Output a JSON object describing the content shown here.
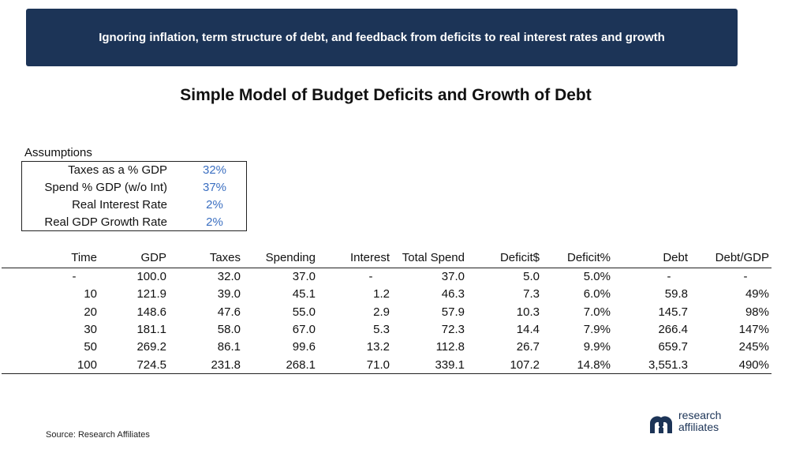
{
  "banner": "Ignoring inflation, term structure of debt, and feedback from deficits to real interest rates and growth",
  "title": "Simple Model of Budget Deficits and Growth of Debt",
  "assumptions": {
    "label": "Assumptions",
    "rows": [
      {
        "k": "Taxes as a % GDP",
        "v": "32%"
      },
      {
        "k": "Spend % GDP (w/o Int)",
        "v": "37%"
      },
      {
        "k": "Real Interest Rate",
        "v": "2%"
      },
      {
        "k": "Real GDP Growth Rate",
        "v": "2%"
      }
    ]
  },
  "table": {
    "headers": [
      "Time",
      "GDP",
      "Taxes",
      "Spending",
      "Interest",
      "Total Spend",
      "Deficit$",
      "Deficit%",
      "Debt",
      "Debt/GDP"
    ],
    "rows": [
      [
        "-",
        "100.0",
        "32.0",
        "37.0",
        "-",
        "37.0",
        "5.0",
        "5.0%",
        "-",
        "-"
      ],
      [
        "10",
        "121.9",
        "39.0",
        "45.1",
        "1.2",
        "46.3",
        "7.3",
        "6.0%",
        "59.8",
        "49%"
      ],
      [
        "20",
        "148.6",
        "47.6",
        "55.0",
        "2.9",
        "57.9",
        "10.3",
        "7.0%",
        "145.7",
        "98%"
      ],
      [
        "30",
        "181.1",
        "58.0",
        "67.0",
        "5.3",
        "72.3",
        "14.4",
        "7.9%",
        "266.4",
        "147%"
      ],
      [
        "50",
        "269.2",
        "86.1",
        "99.6",
        "13.2",
        "112.8",
        "26.7",
        "9.9%",
        "659.7",
        "245%"
      ],
      [
        "100",
        "724.5",
        "231.8",
        "268.1",
        "71.0",
        "339.1",
        "107.2",
        "14.8%",
        "3,551.3",
        "490%"
      ]
    ]
  },
  "source": "Source: Research Affiliates",
  "logo": {
    "line1": "research",
    "line2": "affiliates",
    "color": "#1c3457"
  }
}
